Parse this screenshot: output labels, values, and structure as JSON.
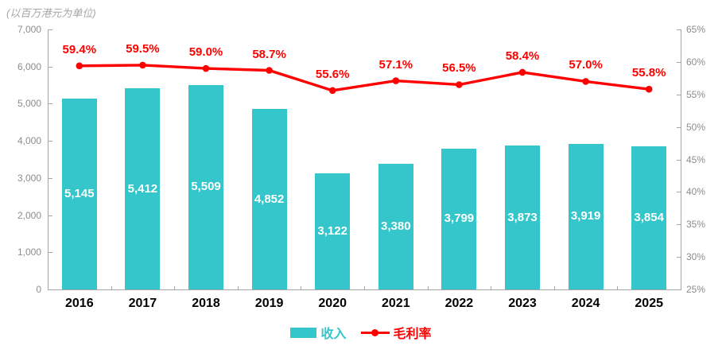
{
  "title": "(以百万港元为单位)",
  "legend": {
    "revenue_label": "收入",
    "margin_label": "毛利率"
  },
  "colors": {
    "bar": "#34c6ca",
    "line": "#fe0000",
    "axis": "#a6a6a6",
    "axis_text": "#8c8c8c",
    "bar_value_text": "#ffffff",
    "year_text": "#000000",
    "title_text": "#a6a6a6"
  },
  "chart_data": {
    "type": "bar+line combo",
    "title": "(以百万港元为单位)",
    "categories": [
      "2016",
      "2017",
      "2018",
      "2019",
      "2020",
      "2021",
      "2022",
      "2023",
      "2024",
      "2025"
    ],
    "series": [
      {
        "name": "收入",
        "type": "bar",
        "axis": "left",
        "values": [
          5145,
          5412,
          5509,
          4852,
          3122,
          3380,
          3799,
          3873,
          3919,
          3854
        ],
        "data_labels": [
          "5,145",
          "5,412",
          "5,509",
          "4,852",
          "3,122",
          "3,380",
          "3,799",
          "3,873",
          "3,919",
          "3,854"
        ]
      },
      {
        "name": "毛利率",
        "type": "line",
        "axis": "right",
        "values": [
          59.4,
          59.5,
          59.0,
          58.7,
          55.6,
          57.1,
          56.5,
          58.4,
          57.0,
          55.8
        ],
        "data_labels": [
          "59.4%",
          "59.5%",
          "59.0%",
          "58.7%",
          "55.6%",
          "57.1%",
          "56.5%",
          "58.4%",
          "57.0%",
          "55.8%"
        ]
      }
    ],
    "left_axis": {
      "min": 0,
      "max": 7000,
      "step": 1000,
      "tick_labels": [
        "0",
        "1,000",
        "2,000",
        "3,000",
        "4,000",
        "5,000",
        "6,000",
        "7,000"
      ]
    },
    "right_axis": {
      "min": 25,
      "max": 65,
      "step": 5,
      "tick_labels": [
        "25%",
        "30%",
        "35%",
        "40%",
        "45%",
        "50%",
        "55%",
        "60%",
        "65%"
      ]
    },
    "gridlines": false,
    "legend_position": "bottom-center"
  }
}
